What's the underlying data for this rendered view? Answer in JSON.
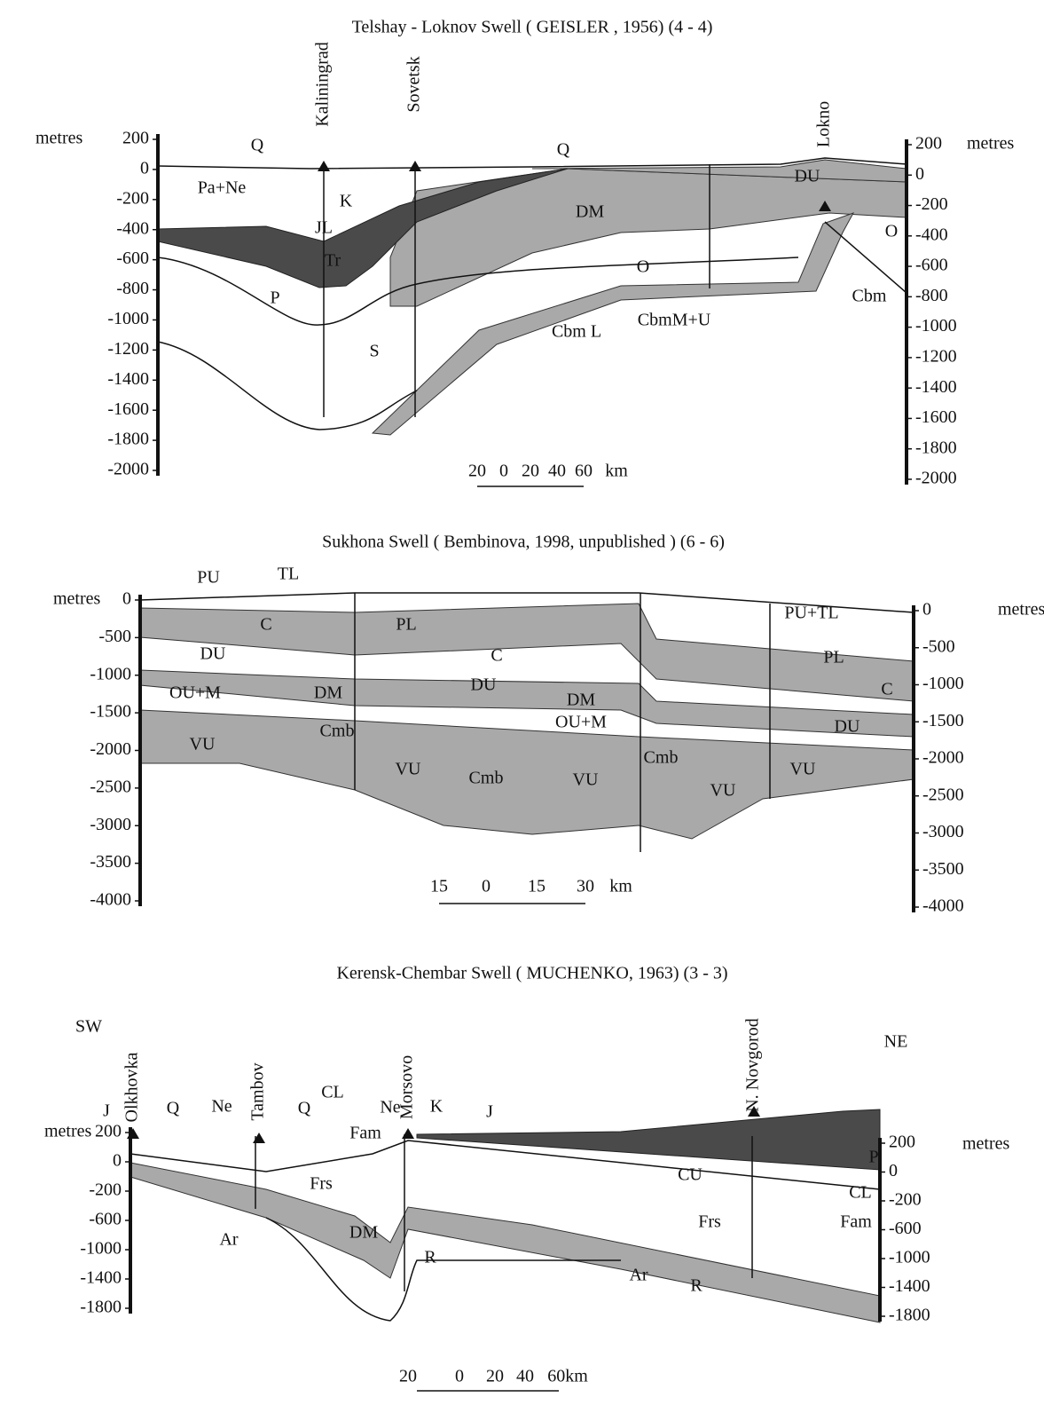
{
  "sections": [
    {
      "title": "Telshay - Loknov Swell ( GEISLER , 1956) (4 - 4)",
      "left_unit": "metres",
      "left_ticks": [
        "200",
        "0",
        "-200",
        "-400",
        "-600",
        "-800",
        "-1000",
        "-1200",
        "-1400",
        "-1600",
        "-1800",
        "-2000"
      ],
      "right_unit": "metres",
      "right_ticks": [
        "200",
        "0",
        "-200",
        "-400",
        "-600",
        "-800",
        "-1000",
        "-1200",
        "-1400",
        "-1600",
        "-1800",
        "-2000"
      ],
      "places": [
        "Kaliningrad",
        "Sovetsk",
        "Lokno"
      ],
      "layers": [
        "Q",
        "Q",
        "Pa+Ne",
        "K",
        "JL",
        "DM",
        "DU",
        "Tr",
        "O",
        "O",
        "P",
        "Cbm",
        "CbmM+U",
        "Cbm L",
        "S"
      ],
      "scale": [
        "20",
        "0",
        "20",
        "40",
        "60",
        "km"
      ]
    },
    {
      "title": "Sukhona Swell ( Bembinova, 1998, unpublished ) (6 - 6)",
      "left_unit": "metres",
      "left_ticks": [
        "0",
        "-500",
        "-1000",
        "-1500",
        "-2000",
        "-2500",
        "-3000",
        "-3500",
        "-4000"
      ],
      "right_unit": "metres",
      "right_ticks": [
        "0",
        "-500",
        "-1000",
        "-1500",
        "-2000",
        "-2500",
        "-3000",
        "-3500",
        "-4000"
      ],
      "places": [],
      "layers": [
        "PU",
        "TL",
        "C",
        "PL",
        "PU+TL",
        "DU",
        "C",
        "PL",
        "C",
        "DU",
        "DM",
        "DM",
        "OU+M",
        "OU+M",
        "DU",
        "Cmb",
        "Cmb",
        "VU",
        "VU",
        "Cmb",
        "VU",
        "VU",
        "VU"
      ],
      "scale": [
        "15",
        "0",
        "15",
        "30",
        "km"
      ]
    },
    {
      "title": "Kerensk-Chembar Swell ( MUCHENKO, 1963) (3 - 3)",
      "directions": [
        "SW",
        "NE"
      ],
      "left_unit": "metres",
      "left_ticks": [
        "200",
        "0",
        "-200",
        "-600",
        "-1000",
        "-1400",
        "-1800"
      ],
      "right_unit": "metres",
      "right_ticks": [
        "200",
        "0",
        "-200",
        "-600",
        "-1000",
        "-1400",
        "-1800"
      ],
      "places": [
        "Olkhovka",
        "Tambov",
        "Morsovo",
        "N. Novgorod"
      ],
      "layers": [
        "J",
        "Q",
        "Ne",
        "Q",
        "CL",
        "Ne",
        "K",
        "J",
        "Fam",
        "P",
        "CU",
        "Frs",
        "CL",
        "Fam",
        "Frs",
        "DM",
        "Ar",
        "R",
        "Ar",
        "R"
      ],
      "scale": [
        "20",
        "0",
        "20",
        "40",
        "60km"
      ]
    }
  ]
}
